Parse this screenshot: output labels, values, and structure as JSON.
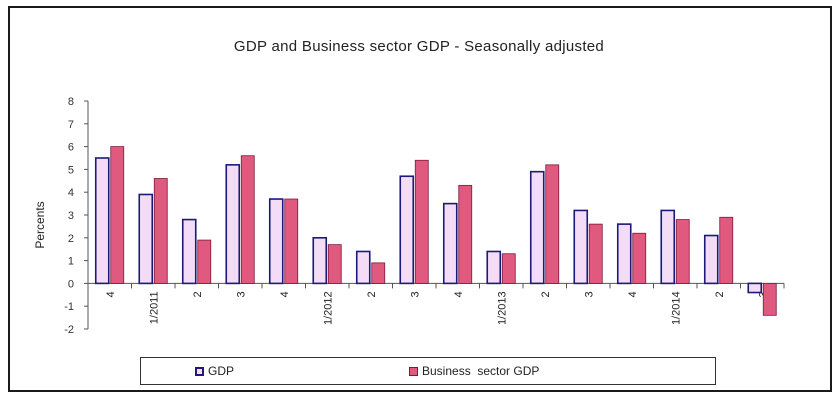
{
  "chart_data": {
    "type": "bar",
    "title": "GDP and Business sector GDP - Seasonally adjusted",
    "ylabel": "Percents",
    "xlabel": "",
    "ylim": [
      -2,
      8
    ],
    "yticks": [
      8,
      7,
      6,
      5,
      4,
      3,
      2,
      1,
      0,
      -1,
      -2
    ],
    "categories": [
      "4",
      "1/2011",
      "2",
      "3",
      "4",
      "1/2012",
      "2",
      "3",
      "4",
      "1/2013",
      "2",
      "3",
      "4",
      "1/2014",
      "2",
      "3"
    ],
    "series": [
      {
        "name": "GDP",
        "color": "#f4dcf6",
        "stroke": "#1a1a7a",
        "values": [
          5.5,
          3.9,
          2.8,
          5.2,
          3.7,
          2.0,
          1.4,
          4.7,
          3.5,
          1.4,
          4.9,
          3.2,
          2.6,
          3.2,
          2.1,
          -0.4
        ]
      },
      {
        "name": "Business sector GDP",
        "color": "#e05a80",
        "stroke": "#7a1a3a",
        "values": [
          6.0,
          4.6,
          1.9,
          5.6,
          3.7,
          1.7,
          0.9,
          5.4,
          4.3,
          1.3,
          5.2,
          2.6,
          2.2,
          2.8,
          2.9,
          -1.4
        ]
      }
    ],
    "grid": false,
    "legend_position": "bottom"
  },
  "legend": {
    "gdp_label": "GDP",
    "business_label": "Business  sector GDP"
  }
}
